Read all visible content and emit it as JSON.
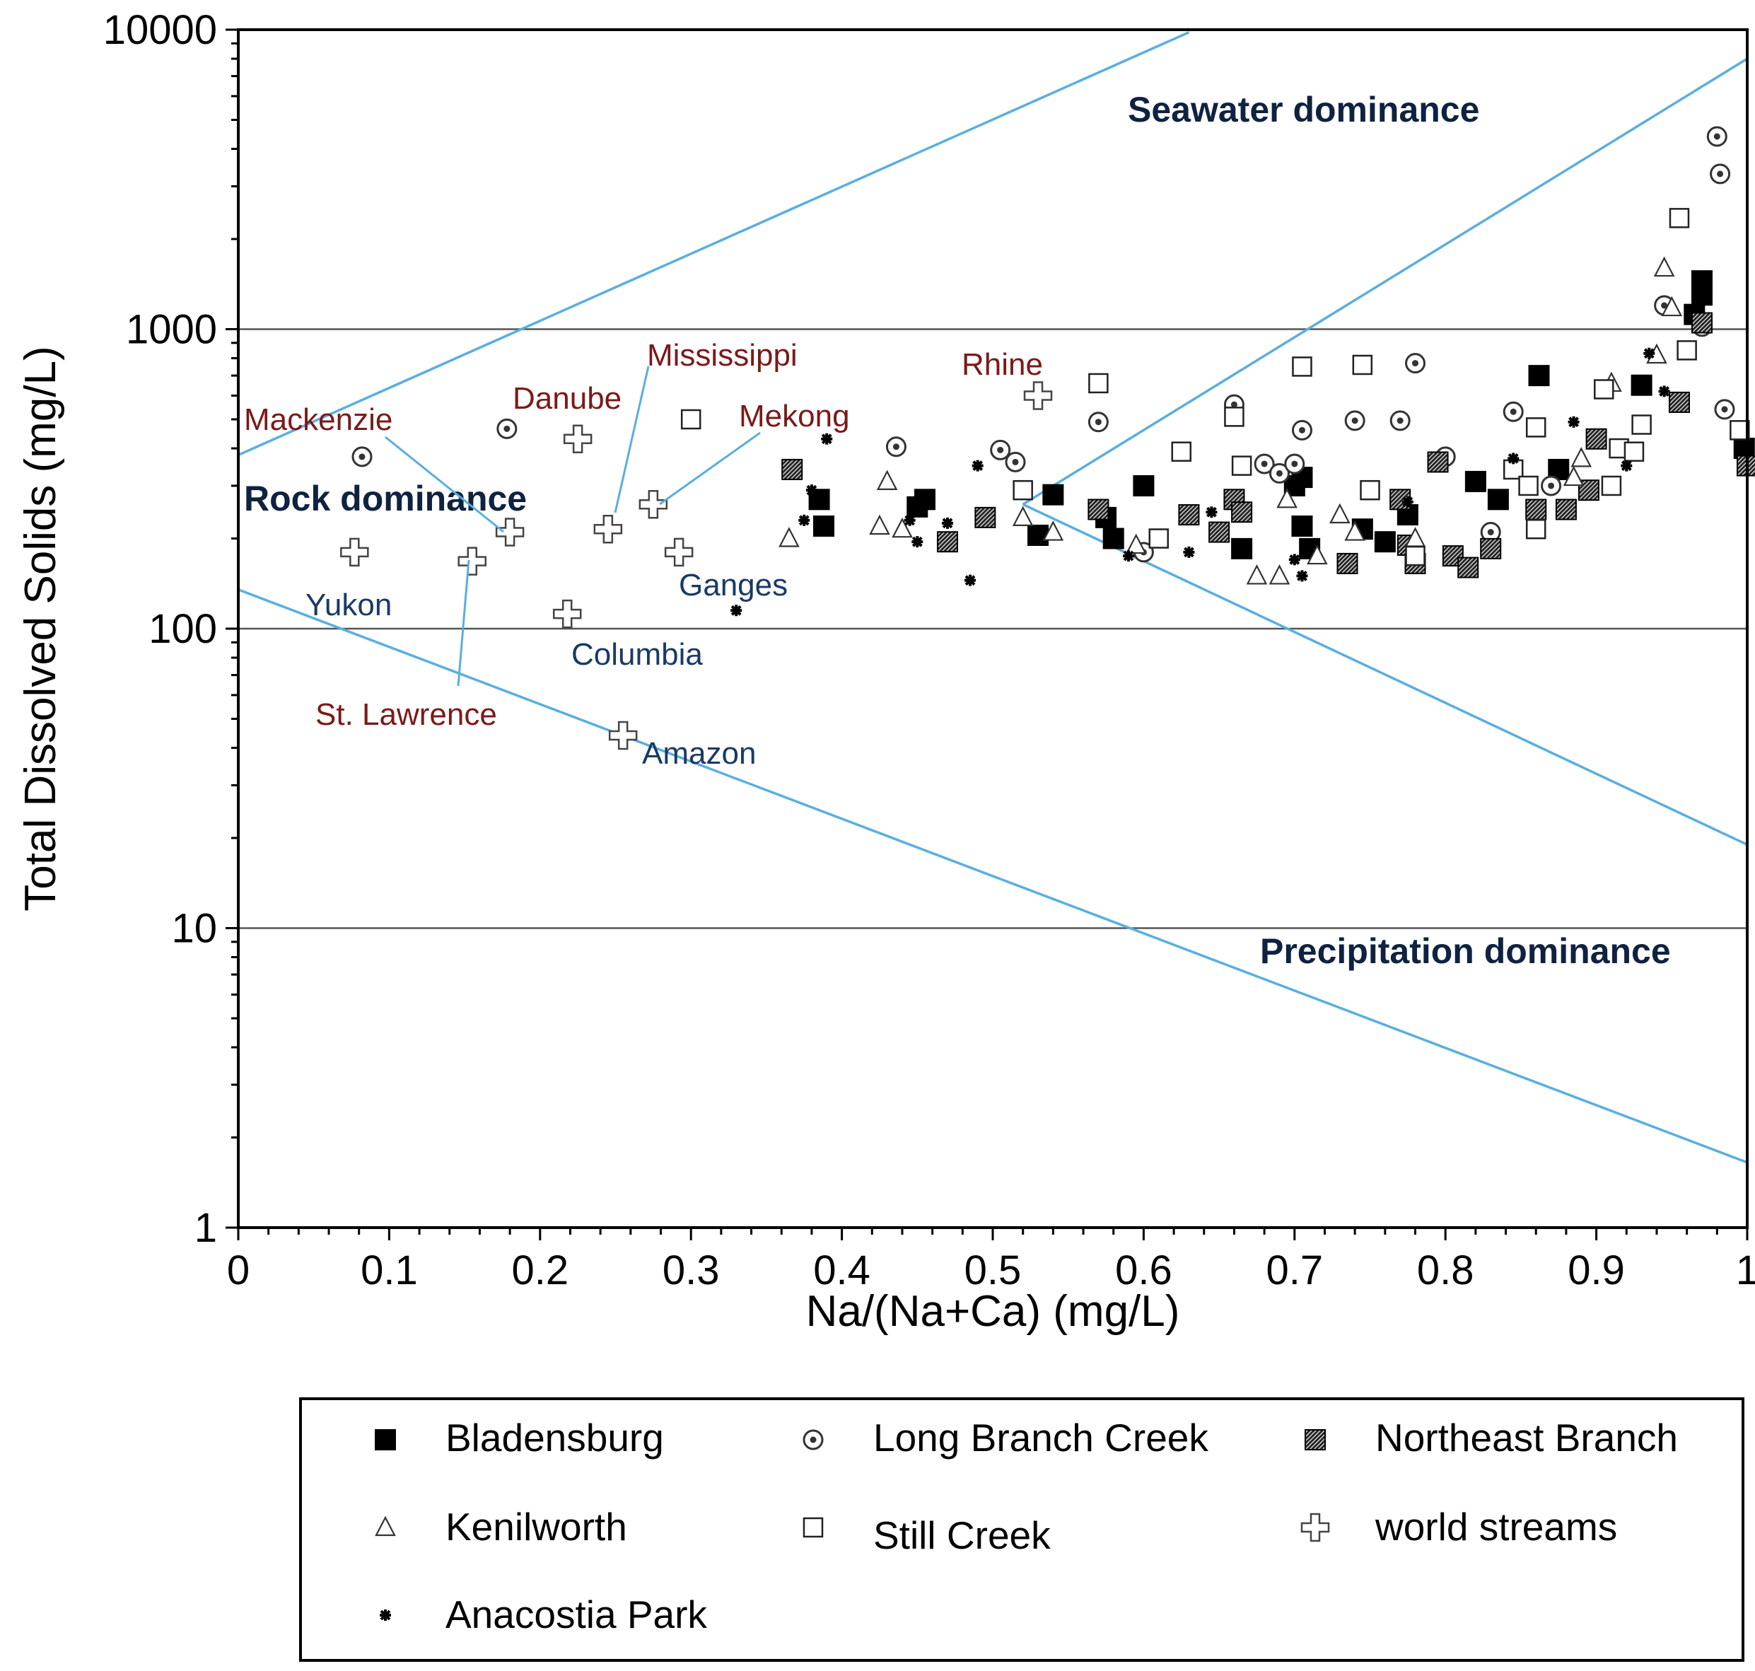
{
  "chart_data": {
    "type": "scatter",
    "title": "",
    "xlabel": "Na/(Na+Ca) (mg/L)",
    "ylabel": "Total Dissolved Solids (mg/L)",
    "xlim": [
      0,
      1
    ],
    "ylim": [
      1,
      10000
    ],
    "yscale": "log",
    "x_ticks": [
      "0",
      "0.1",
      "0.2",
      "0.3",
      "0.4",
      "0.5",
      "0.6",
      "0.7",
      "0.8",
      "0.9",
      "1"
    ],
    "y_ticks": [
      "1",
      "10",
      "100",
      "1000",
      "10000"
    ],
    "gridlines": [
      10,
      100,
      1000
    ],
    "boundary_lines": [
      {
        "name": "upper-rock-boundary",
        "points": [
          [
            0,
            380
          ],
          [
            0.63,
            9800
          ]
        ]
      },
      {
        "name": "seawater-boundary",
        "points": [
          [
            0.52,
            260
          ],
          [
            1.0,
            8000
          ]
        ]
      },
      {
        "name": "precipitation-boundary-upper",
        "points": [
          [
            0.52,
            260
          ],
          [
            1.0,
            19
          ]
        ]
      },
      {
        "name": "lower-rock-boundary",
        "points": [
          [
            0,
            135
          ],
          [
            1.0,
            1.65
          ]
        ]
      }
    ],
    "region_labels": [
      "Seawater dominance",
      "Rock dominance",
      "Precipitation dominance"
    ],
    "world_streams": [
      {
        "name": "Mackenzie",
        "x": 0.18,
        "y": 210
      },
      {
        "name": "Yukon",
        "x": 0.077,
        "y": 180
      },
      {
        "name": "St. Lawrence",
        "x": 0.155,
        "y": 168
      },
      {
        "name": "Danube",
        "x": 0.225,
        "y": 430
      },
      {
        "name": "Mississippi",
        "x": 0.245,
        "y": 215
      },
      {
        "name": "Mekong",
        "x": 0.275,
        "y": 260
      },
      {
        "name": "Ganges",
        "x": 0.292,
        "y": 180
      },
      {
        "name": "Columbia",
        "x": 0.218,
        "y": 112
      },
      {
        "name": "Amazon",
        "x": 0.255,
        "y": 44
      },
      {
        "name": "Rhine",
        "x": 0.53,
        "y": 600
      }
    ],
    "series": [
      {
        "name": "Bladensburg",
        "marker": "filled-square",
        "points": [
          [
            0.385,
            270
          ],
          [
            0.388,
            220
          ],
          [
            0.455,
            270
          ],
          [
            0.45,
            255
          ],
          [
            0.54,
            280
          ],
          [
            0.53,
            205
          ],
          [
            0.6,
            300
          ],
          [
            0.575,
            235
          ],
          [
            0.58,
            200
          ],
          [
            0.665,
            185
          ],
          [
            0.7,
            300
          ],
          [
            0.705,
            320
          ],
          [
            0.705,
            220
          ],
          [
            0.71,
            185
          ],
          [
            0.745,
            215
          ],
          [
            0.76,
            195
          ],
          [
            0.775,
            240
          ],
          [
            0.82,
            310
          ],
          [
            0.835,
            270
          ],
          [
            0.862,
            700
          ],
          [
            0.875,
            340
          ],
          [
            0.93,
            650
          ],
          [
            0.97,
            1450
          ],
          [
            0.97,
            1300
          ],
          [
            0.965,
            1120
          ],
          [
            0.998,
            400
          ]
        ]
      },
      {
        "name": "Long Branch Creek",
        "marker": "circle-dot",
        "points": [
          [
            0.082,
            375
          ],
          [
            0.178,
            465
          ],
          [
            0.436,
            405
          ],
          [
            0.505,
            395
          ],
          [
            0.515,
            360
          ],
          [
            0.57,
            490
          ],
          [
            0.6,
            180
          ],
          [
            0.66,
            560
          ],
          [
            0.68,
            355
          ],
          [
            0.69,
            330
          ],
          [
            0.7,
            355
          ],
          [
            0.705,
            460
          ],
          [
            0.74,
            495
          ],
          [
            0.77,
            495
          ],
          [
            0.78,
            770
          ],
          [
            0.8,
            375
          ],
          [
            0.83,
            210
          ],
          [
            0.845,
            530
          ],
          [
            0.87,
            300
          ],
          [
            0.945,
            1200
          ],
          [
            0.97,
            1020
          ],
          [
            0.98,
            4400
          ],
          [
            0.982,
            3300
          ],
          [
            0.985,
            540
          ]
        ]
      },
      {
        "name": "Northeast Branch",
        "marker": "hatched-square",
        "points": [
          [
            0.367,
            340
          ],
          [
            0.47,
            195
          ],
          [
            0.495,
            235
          ],
          [
            0.57,
            250
          ],
          [
            0.63,
            240
          ],
          [
            0.65,
            210
          ],
          [
            0.66,
            270
          ],
          [
            0.665,
            245
          ],
          [
            0.735,
            165
          ],
          [
            0.77,
            270
          ],
          [
            0.775,
            190
          ],
          [
            0.78,
            165
          ],
          [
            0.795,
            360
          ],
          [
            0.805,
            175
          ],
          [
            0.815,
            160
          ],
          [
            0.83,
            185
          ],
          [
            0.86,
            250
          ],
          [
            0.88,
            250
          ],
          [
            0.895,
            290
          ],
          [
            0.9,
            430
          ],
          [
            0.955,
            570
          ],
          [
            0.97,
            1050
          ],
          [
            1.0,
            350
          ]
        ]
      },
      {
        "name": "Kenilworth",
        "marker": "open-triangle",
        "points": [
          [
            0.365,
            200
          ],
          [
            0.425,
            220
          ],
          [
            0.43,
            310
          ],
          [
            0.44,
            215
          ],
          [
            0.52,
            235
          ],
          [
            0.54,
            210
          ],
          [
            0.595,
            190
          ],
          [
            0.675,
            150
          ],
          [
            0.69,
            150
          ],
          [
            0.695,
            270
          ],
          [
            0.715,
            175
          ],
          [
            0.73,
            240
          ],
          [
            0.74,
            210
          ],
          [
            0.78,
            200
          ],
          [
            0.885,
            320
          ],
          [
            0.89,
            370
          ],
          [
            0.91,
            660
          ],
          [
            0.94,
            820
          ],
          [
            0.945,
            1600
          ],
          [
            0.95,
            1180
          ]
        ]
      },
      {
        "name": "Still Creek",
        "marker": "open-square",
        "points": [
          [
            0.3,
            500
          ],
          [
            0.52,
            290
          ],
          [
            0.57,
            660
          ],
          [
            0.61,
            200
          ],
          [
            0.625,
            390
          ],
          [
            0.66,
            510
          ],
          [
            0.665,
            350
          ],
          [
            0.705,
            750
          ],
          [
            0.745,
            760
          ],
          [
            0.75,
            290
          ],
          [
            0.78,
            175
          ],
          [
            0.845,
            340
          ],
          [
            0.855,
            300
          ],
          [
            0.86,
            470
          ],
          [
            0.86,
            215
          ],
          [
            0.905,
            630
          ],
          [
            0.91,
            300
          ],
          [
            0.915,
            400
          ],
          [
            0.925,
            390
          ],
          [
            0.93,
            480
          ],
          [
            0.955,
            2350
          ],
          [
            0.96,
            850
          ],
          [
            0.995,
            460
          ]
        ]
      },
      {
        "name": "world streams",
        "marker": "open-cross",
        "points": [
          [
            0.18,
            210
          ],
          [
            0.077,
            180
          ],
          [
            0.155,
            168
          ],
          [
            0.225,
            430
          ],
          [
            0.245,
            215
          ],
          [
            0.275,
            260
          ],
          [
            0.292,
            180
          ],
          [
            0.218,
            112
          ],
          [
            0.255,
            44
          ],
          [
            0.53,
            600
          ]
        ]
      },
      {
        "name": "Anacostia Park",
        "marker": "asterisk",
        "points": [
          [
            0.33,
            115
          ],
          [
            0.375,
            230
          ],
          [
            0.38,
            290
          ],
          [
            0.39,
            430
          ],
          [
            0.445,
            230
          ],
          [
            0.45,
            195
          ],
          [
            0.47,
            225
          ],
          [
            0.485,
            145
          ],
          [
            0.49,
            350
          ],
          [
            0.59,
            175
          ],
          [
            0.63,
            180
          ],
          [
            0.645,
            245
          ],
          [
            0.7,
            170
          ],
          [
            0.705,
            150
          ],
          [
            0.775,
            265
          ],
          [
            0.845,
            370
          ],
          [
            0.885,
            490
          ],
          [
            0.92,
            350
          ],
          [
            0.935,
            830
          ],
          [
            0.945,
            620
          ]
        ]
      }
    ]
  },
  "legend": {
    "items": [
      {
        "label": "Bladensburg",
        "marker": "filled-square"
      },
      {
        "label": "Long Branch Creek",
        "marker": "circle-dot"
      },
      {
        "label": "Northeast Branch",
        "marker": "hatched-square"
      },
      {
        "label": "Kenilworth",
        "marker": "open-triangle"
      },
      {
        "label": "Still Creek",
        "marker": "open-square"
      },
      {
        "label": "world streams",
        "marker": "open-cross"
      },
      {
        "label": "Anacostia Park",
        "marker": "asterisk"
      }
    ]
  },
  "colors": {
    "boundary_line": "#5aaee0",
    "gridline": "#555555",
    "axis": "#000000",
    "river_label": "#7a1a1a",
    "region_label": "#0f2240"
  }
}
